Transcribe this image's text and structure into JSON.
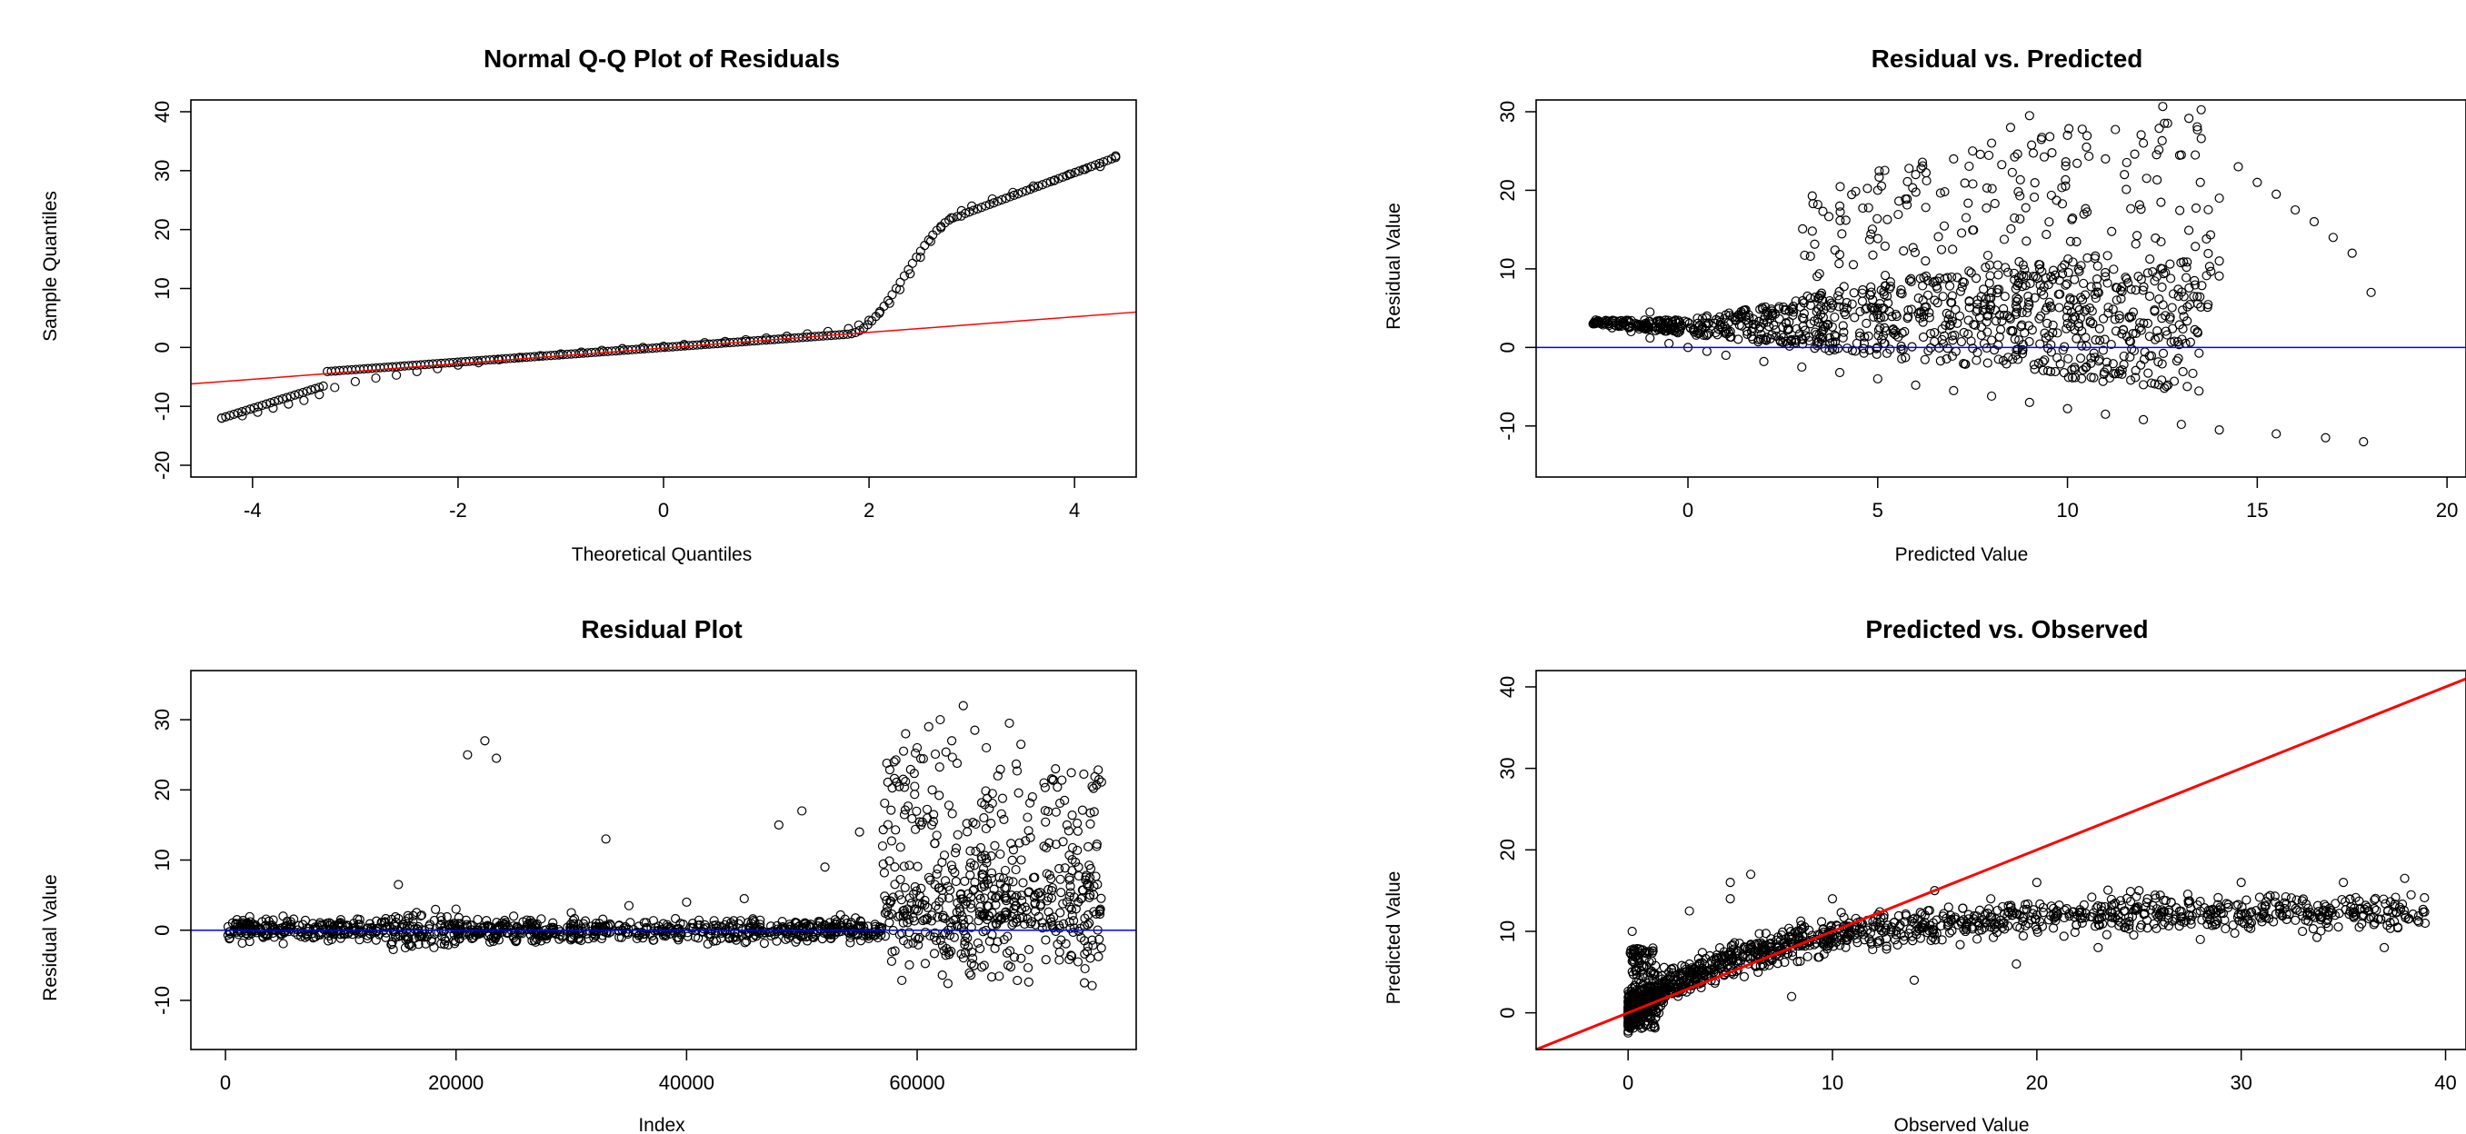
{
  "chart_data": [
    {
      "type": "scatter",
      "title": "Normal Q-Q Plot of Residuals",
      "xlabel": "Theoretical Quantiles",
      "ylabel": "Sample Quantiles",
      "xlim": [
        -4.6,
        4.6
      ],
      "ylim": [
        -22,
        42
      ],
      "xticks": [
        -4,
        -2,
        0,
        2,
        4
      ],
      "yticks": [
        -20,
        -10,
        0,
        10,
        20,
        30,
        40
      ],
      "reference_line": {
        "color": "#ff0000",
        "points": [
          [
            -4.6,
            -6.2
          ],
          [
            4.6,
            6.0
          ]
        ]
      },
      "series": [
        {
          "color": "#000000",
          "x": [
            -4.3,
            -4.1,
            -3.95,
            -3.8,
            -3.65,
            -3.5,
            -3.35,
            -3.2,
            -3.0,
            -2.8,
            -2.6,
            -2.4,
            -2.2,
            -2.0,
            -1.8,
            -1.6,
            -1.4,
            -1.2,
            -1.0,
            -0.8,
            -0.6,
            -0.4,
            -0.2,
            0.0,
            0.2,
            0.4,
            0.6,
            0.8,
            1.0,
            1.2,
            1.4,
            1.6,
            1.8,
            1.9,
            2.0,
            2.1,
            2.2,
            2.3,
            2.4,
            2.5,
            2.6,
            2.7,
            2.8,
            2.9,
            3.0,
            3.2,
            3.4,
            3.6,
            3.8,
            3.95,
            4.1,
            4.25,
            4.4
          ],
          "y": [
            -12.0,
            -11.6,
            -11.0,
            -10.3,
            -9.6,
            -9.0,
            -8.0,
            -6.8,
            -5.8,
            -5.2,
            -4.7,
            -4.1,
            -3.6,
            -3.0,
            -2.6,
            -2.1,
            -1.7,
            -1.4,
            -1.1,
            -0.8,
            -0.5,
            -0.2,
            0.0,
            0.2,
            0.5,
            0.8,
            1.0,
            1.3,
            1.6,
            1.9,
            2.3,
            2.7,
            3.2,
            3.8,
            4.6,
            5.8,
            7.5,
            9.8,
            12.5,
            15.3,
            18.0,
            20.3,
            22.0,
            23.2,
            24.0,
            25.2,
            26.3,
            27.4,
            28.3,
            29.4,
            30.2,
            30.7,
            32.5
          ]
        }
      ]
    },
    {
      "type": "scatter",
      "title": "Residual vs. Predicted",
      "xlabel": "Predicted Value",
      "ylabel": "Residual Value",
      "xlim": [
        -4,
        20.5
      ],
      "ylim": [
        -16.5,
        31.5
      ],
      "xticks": [
        0,
        5,
        10,
        15,
        20
      ],
      "yticks": [
        -10,
        0,
        10,
        20,
        30
      ],
      "reference_line": {
        "color": "#0000ff",
        "y": 0
      },
      "series": [
        {
          "color": "#000000",
          "x": [
            -2.5,
            -2.0,
            -1.5,
            -1.0,
            -0.5,
            0.0,
            0.5,
            1.0,
            2.0,
            3.0,
            4.0,
            5.0,
            6.0,
            7.0,
            8.0,
            9.0,
            10.0,
            11.0,
            12.0,
            13.0,
            14.0,
            -1.0,
            0.5,
            2.0,
            3.5,
            5.0,
            6.5,
            8.0,
            9.5,
            11.0,
            12.5,
            14.0,
            4.0,
            5.0,
            6.0,
            7.0,
            7.5,
            8.0,
            8.5,
            9.0,
            10.0,
            10.5,
            11.0,
            11.5,
            12.0,
            13.0,
            13.5,
            14.0,
            14.5,
            15.0,
            15.5,
            16.0,
            16.5,
            17.0,
            17.5,
            18.0,
            17.8,
            16.8,
            15.5
          ],
          "y": [
            3.0,
            2.5,
            2.0,
            1.2,
            0.5,
            0.0,
            -0.5,
            -1.0,
            -1.8,
            -2.5,
            -3.2,
            -4.0,
            -4.8,
            -5.5,
            -6.2,
            -7.0,
            -7.8,
            -8.5,
            -9.2,
            -9.8,
            -10.5,
            4.5,
            4.0,
            3.5,
            4.2,
            5.0,
            6.0,
            7.0,
            8.0,
            9.0,
            10.0,
            11.0,
            18.0,
            20.0,
            22.0,
            24.0,
            25.0,
            26.0,
            28.0,
            29.5,
            27.0,
            25.5,
            24.0,
            22.0,
            26.0,
            24.5,
            21.0,
            19.0,
            23.0,
            21.0,
            19.5,
            17.5,
            16.0,
            14.0,
            12.0,
            7.0,
            -12.0,
            -11.5,
            -11.0
          ]
        }
      ]
    },
    {
      "type": "scatter",
      "title": "Residual Plot",
      "xlabel": "Index",
      "ylabel": "Residual Value",
      "xlim": [
        -3000,
        79000
      ],
      "ylim": [
        -17,
        37
      ],
      "xticks": [
        0,
        20000,
        40000,
        60000
      ],
      "yticks": [
        -10,
        0,
        10,
        20,
        30
      ],
      "reference_line": {
        "color": "#0000ff",
        "y": 0
      },
      "series": [
        {
          "color": "#000000",
          "x": [
            1000,
            5000,
            10000,
            15000,
            20000,
            21000,
            22500,
            23500,
            25000,
            30000,
            33000,
            35000,
            40000,
            45000,
            48000,
            50000,
            52000,
            55000,
            57000,
            58000,
            59000,
            60000,
            61000,
            62000,
            63000,
            64000,
            65000,
            66000,
            67000,
            68000,
            69000,
            70000,
            71000,
            72000,
            73000,
            74000,
            75000
          ],
          "y": [
            1.5,
            2.0,
            1.5,
            6.5,
            3.0,
            25.0,
            27.0,
            24.5,
            2.0,
            2.5,
            13.0,
            3.5,
            4.0,
            4.5,
            15.0,
            17.0,
            9.0,
            14.0,
            12.0,
            24.0,
            28.0,
            26.0,
            29.0,
            30.0,
            27.0,
            32.0,
            28.5,
            26.0,
            22.0,
            29.5,
            26.5,
            19.0,
            21.0,
            23.0,
            15.0,
            9.0,
            5.0
          ]
        }
      ]
    },
    {
      "type": "scatter",
      "title": "Predicted vs. Observed",
      "xlabel": "Observed Value",
      "ylabel": "Predicted Value",
      "xlim": [
        -4.5,
        41
      ],
      "ylim": [
        -4.5,
        42
      ],
      "xticks": [
        0,
        10,
        20,
        30,
        40
      ],
      "yticks": [
        0,
        10,
        20,
        30,
        40
      ],
      "reference_line": {
        "color": "#ff0000",
        "points": [
          [
            -4.5,
            -4.5
          ],
          [
            41,
            41
          ]
        ]
      },
      "series": [
        {
          "color": "#000000",
          "x": [
            0,
            0.5,
            1,
            2,
            3,
            4,
            5,
            6,
            7,
            8,
            9,
            10,
            12,
            14,
            16,
            18,
            20,
            22,
            24,
            26,
            28,
            30,
            32,
            34,
            36,
            38,
            39,
            5,
            10,
            15,
            20,
            25,
            30,
            35,
            38,
            6,
            8,
            14,
            19,
            23,
            28,
            33,
            37,
            0.2,
            3,
            5
          ],
          "y": [
            0,
            2,
            4,
            5,
            6,
            7,
            7.5,
            8,
            8.5,
            9,
            9.5,
            10,
            10.5,
            11,
            11.5,
            11.5,
            12,
            12,
            12,
            12,
            12.5,
            12,
            12,
            12.5,
            12,
            12,
            11,
            14,
            14,
            15,
            16,
            15,
            16,
            16,
            16.5,
            17,
            2,
            4,
            6,
            8,
            9,
            10,
            8,
            10,
            12.5,
            16
          ]
        }
      ]
    }
  ]
}
